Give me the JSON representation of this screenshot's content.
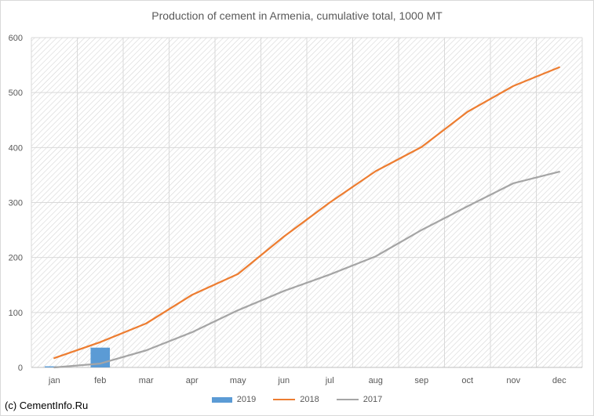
{
  "chart_data": {
    "type": "line",
    "title": "Production of cement in Armenia, cumulative total, 1000 MT",
    "categories": [
      "jan",
      "feb",
      "mar",
      "apr",
      "may",
      "jun",
      "jul",
      "aug",
      "sep",
      "oct",
      "nov",
      "dec"
    ],
    "ylim": [
      0,
      600
    ],
    "yticks": [
      0,
      100,
      200,
      300,
      400,
      500,
      600
    ],
    "grid": true,
    "legend_position": "bottom",
    "series": [
      {
        "name": "2019",
        "type": "bar",
        "color": "#5b9bd5",
        "values": [
          2,
          36,
          null,
          null,
          null,
          null,
          null,
          null,
          null,
          null,
          null,
          null
        ]
      },
      {
        "name": "2018",
        "type": "line",
        "color": "#ed7d31",
        "values": [
          17,
          46,
          80,
          132,
          170,
          238,
          300,
          357,
          401,
          465,
          512,
          546
        ]
      },
      {
        "name": "2017",
        "type": "line",
        "color": "#a5a5a5",
        "values": [
          0,
          7,
          31,
          64,
          104,
          139,
          169,
          202,
          250,
          293,
          335,
          356
        ]
      }
    ]
  },
  "credit": "(c) CementInfo.Ru"
}
